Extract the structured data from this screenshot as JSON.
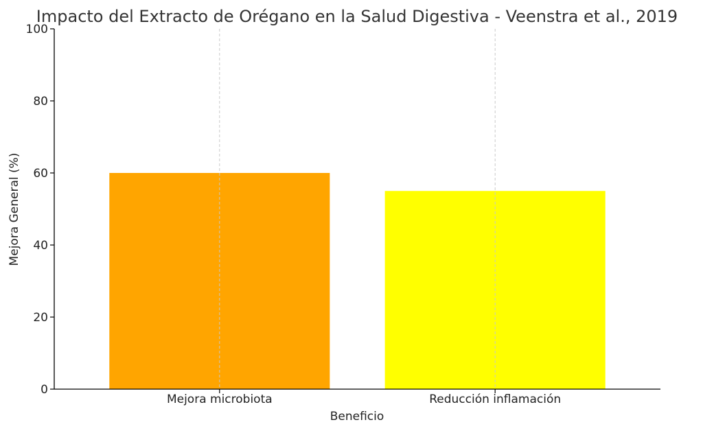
{
  "chart_data": {
    "type": "bar",
    "title": "Impacto del Extracto de Orégano en la Salud Digestiva - Veenstra et al., 2019",
    "xlabel": "Beneficio",
    "ylabel": "Mejora General (%)",
    "categories": [
      "Mejora microbiota",
      "Reducción inflamación"
    ],
    "values": [
      60,
      55
    ],
    "colors": [
      "#FFA500",
      "#FFFF00"
    ],
    "ylim": [
      0,
      100
    ],
    "yticks": [
      0,
      20,
      40,
      60,
      80,
      100
    ],
    "grid": "vertical dashed lines at category centers",
    "legend": "none"
  }
}
